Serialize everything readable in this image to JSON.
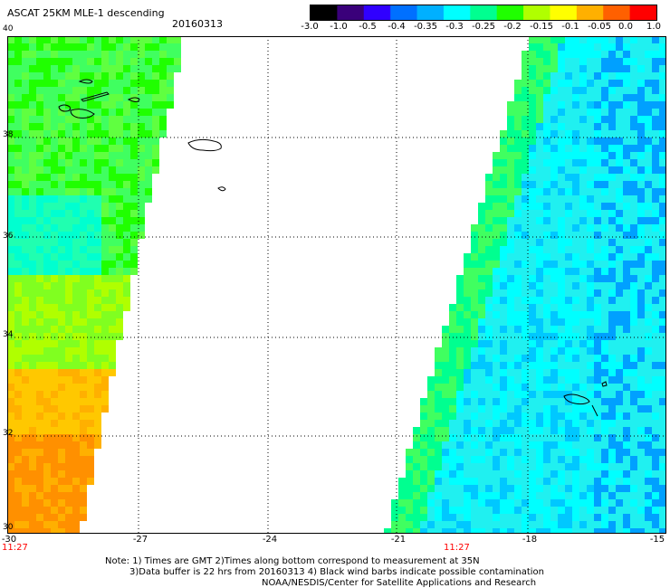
{
  "header": {
    "title": "ASCAT 25KM MLE-1 descending",
    "date": "20160313"
  },
  "colorbar": {
    "labels": [
      "-3.0",
      "-1.0",
      "-0.5",
      "-0.4",
      "-0.35",
      "-0.3",
      "-0.25",
      "-0.2",
      "-0.15",
      "-0.1",
      "-0.05",
      "0.0",
      "1.0"
    ],
    "colors": [
      "#000000",
      "#3a007a",
      "#3000ff",
      "#0070ff",
      "#00b0ff",
      "#00ffff",
      "#00ff90",
      "#20ff00",
      "#b0ff00",
      "#ffff00",
      "#ffb000",
      "#ff6000",
      "#ff0000"
    ]
  },
  "map": {
    "lon_range": [
      -30,
      -15
    ],
    "lat_range": [
      30,
      40
    ],
    "lon_labels": [
      "-30",
      "-27",
      "-24",
      "-21",
      "-18",
      "-15"
    ],
    "lat_labels": [
      "40",
      "38",
      "36",
      "34",
      "32",
      "30"
    ],
    "time_labels": [
      "11:27",
      "11:27"
    ],
    "grid": true
  },
  "notes": {
    "line1": "Note: 1) Times are GMT 2)Times along bottom correspond to measurement at 35N",
    "line2": "3)Data buffer is 22 hrs from 20160313 4) Black wind barbs indicate possible contamination",
    "line3": "NOAA/NESDIS/Center for Satellite Applications and Research"
  }
}
